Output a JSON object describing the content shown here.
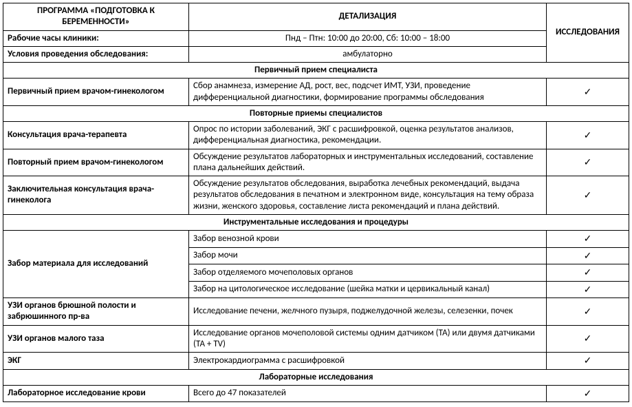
{
  "checkmark": "✓",
  "head": {
    "program": "ПРОГРАММА «ПОДГОТОВКА К БЕРЕМЕННОСТИ»",
    "detail": "ДЕТАЛИЗАЦИЯ",
    "research": "ИССЛЕДОВАНИЯ"
  },
  "info": {
    "hours_label": "Рабочие часы клиники:",
    "hours_value": "Пнд – Птн: 10:00 до 20:00, Сб: 10:00 – 18:00",
    "cond_label": "Условия проведения обследования:",
    "cond_value": "амбулаторно"
  },
  "sections": {
    "s1": "Первичный прием специалиста",
    "s2": "Повторные приемы специалистов",
    "s3": "Инструментальные исследования и процедуры",
    "s4": "Лабораторные исследования"
  },
  "rows": {
    "r1": {
      "name": "Первичный прием врачом-гинекологом",
      "detail": "Сбор анамнеза, измерение АД, рост, вес, подсчет ИМТ, УЗИ, проведение дифференциальной диагностики, формирование программы обследования"
    },
    "r2": {
      "name": "Консультация врача-терапевта",
      "detail": "Опрос по истории заболеваний, ЭКГ с расшифровкой, оценка результатов анализов, дифференциальная диагностика, рекомендации."
    },
    "r3": {
      "name": "Повторный прием врачом-гинекологом",
      "detail": "Обсуждение результатов лабораторных и инструментальных исследований, составление плана дальнейших действий."
    },
    "r4": {
      "name": "Заключительная консультация врача-гинеколога",
      "detail": "Обсуждение результатов обследования, выработка лечебных рекомендаций, выдача результатов обследования в печатном и электронном виде, консультация на тему образа жизни, женского здоровья, составление листа рекомендаций и плана действий."
    },
    "r5": {
      "name": "Забор материала для исследований",
      "d1": "Забор венозной крови",
      "d2": "Забор мочи",
      "d3": "Забор отделяемого мочеполовых органов",
      "d4": "Забор на цитологическое исследование (шейка матки и цервикальный канал)"
    },
    "r6": {
      "name": "УЗИ органов брюшной полости и забрюшинного пр-ва",
      "detail": "Исследование печени, желчного пузыря, поджелудочной железы, селезенки, почек"
    },
    "r7": {
      "name": "УЗИ органов малого таза",
      "detail": "Исследование органов мочеполовой системы одним датчиком (ТА) или двумя датчиками (ТА + TV)"
    },
    "r8": {
      "name": "ЭКГ",
      "detail": "Электрокардиограмма с расшифровкой"
    },
    "r9": {
      "name": "Лабораторное исследование крови",
      "detail": "Всего до 47 показателей"
    }
  }
}
